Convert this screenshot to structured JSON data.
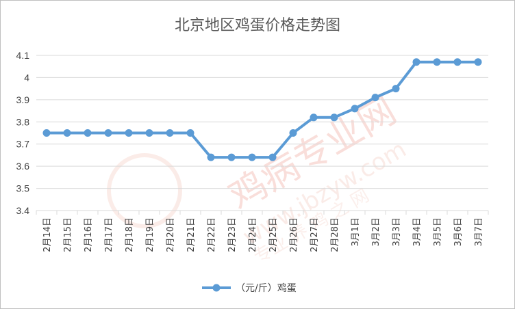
{
  "colors": {
    "series": "#5b9bd5",
    "grid": "#d9d9d9",
    "text": "#404040",
    "title": "#595959",
    "watermark": "#f4c8c0"
  },
  "watermark": {
    "main": "鸡病专业网",
    "url": "www.jbzyw.com",
    "sub": "专业 养 鸡 之 网"
  },
  "chart_data": {
    "type": "line",
    "title": "北京地区鸡蛋价格走势图",
    "xlabel": "",
    "ylabel": "",
    "ylim": [
      3.4,
      4.1
    ],
    "yticks": [
      "3.4",
      "3.5",
      "3.6",
      "3.7",
      "3.8",
      "3.9",
      "4",
      "4.1"
    ],
    "grid": true,
    "legend": "bottom",
    "categories": [
      "2月14日",
      "2月15日",
      "2月16日",
      "2月17日",
      "2月18日",
      "2月19日",
      "2月20日",
      "2月21日",
      "2月22日",
      "2月23日",
      "2月24日",
      "2月25日",
      "2月26日",
      "2月27日",
      "2月28日",
      "3月1日",
      "3月2日",
      "3月3日",
      "3月4日",
      "3月5日",
      "3月6日",
      "3月7日"
    ],
    "series": [
      {
        "name": "（元/斤）鸡蛋",
        "values": [
          3.75,
          3.75,
          3.75,
          3.75,
          3.75,
          3.75,
          3.75,
          3.75,
          3.64,
          3.64,
          3.64,
          3.64,
          3.75,
          3.82,
          3.82,
          3.86,
          3.91,
          3.95,
          4.07,
          4.07,
          4.07,
          4.07
        ]
      }
    ]
  }
}
